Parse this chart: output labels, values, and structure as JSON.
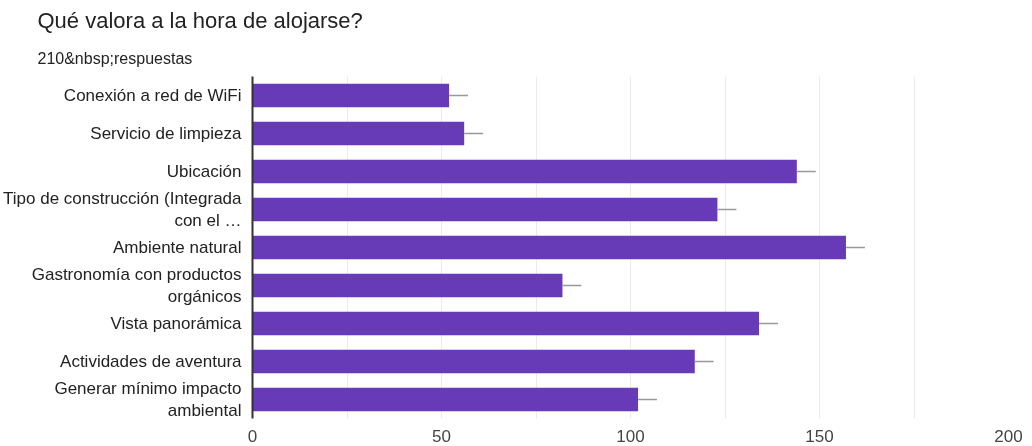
{
  "chart_data": {
    "type": "bar",
    "orientation": "horizontal",
    "title": "Qué valora a la hora de alojarse?",
    "subtitle": "210&nbsp;respuestas",
    "categories": [
      "Conexión a red de WiFi",
      "Servicio de limpieza",
      "Ubicación",
      "Tipo de construcción (Integrada con el …",
      "Ambiente natural",
      "Gastronomía con productos orgánicos",
      "Vista panorámica",
      "Actividades de aventura",
      "Generar mínimo impacto ambiental"
    ],
    "series": [
      {
        "color": "#673ab7",
        "values": [
          52,
          56,
          144,
          123,
          157,
          82,
          134,
          117,
          102
        ],
        "errors": [
          [
            52,
            57
          ],
          [
            56,
            61
          ],
          [
            144,
            149
          ],
          [
            123,
            128
          ],
          [
            157,
            162
          ],
          [
            82,
            87
          ],
          [
            134,
            139
          ],
          [
            117,
            122
          ],
          [
            102,
            107
          ]
        ]
      }
    ],
    "xlim": [
      0,
      200
    ],
    "xticks": [
      0,
      {
        "value": 25,
        "label": null
      },
      50,
      {
        "value": 75,
        "label": null
      },
      100,
      {
        "value": 125,
        "label": null
      },
      150,
      {
        "value": 175,
        "label": null
      },
      200
    ],
    "grid": "x"
  }
}
